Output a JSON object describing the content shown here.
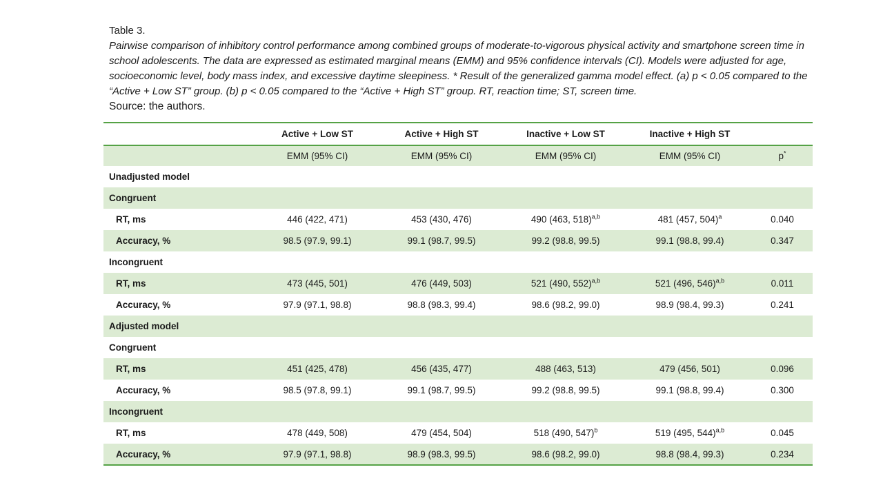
{
  "caption": {
    "table_number": "Table 3.",
    "text": "Pairwise comparison of inhibitory control performance among combined groups of moderate-to-vigorous physical activity and smartphone screen time in school adolescents. The data are expressed as estimated marginal means (EMM) and 95% confidence intervals (CI). Models were adjusted for age, socioeconomic level, body mass index, and excessive daytime sleepiness. * Result of the generalized gamma model effect. (a) p < 0.05 compared to the “Active + Low ST” group. (b) p < 0.05 compared to the “Active + High ST” group. RT, reaction time; ST, screen time.",
    "source": "Source: the authors."
  },
  "colors": {
    "row_shade": "#dcebd3",
    "rule_green": "#55a245",
    "text": "#1a1a1a"
  },
  "table": {
    "group_columns": [
      "Active + Low ST",
      "Active + High ST",
      "Inactive + Low ST",
      "Inactive + High ST"
    ],
    "subcolumns": [
      "EMM (95% CI)",
      "EMM (95% CI)",
      "EMM (95% CI)",
      "EMM (95% CI)"
    ],
    "p_header": {
      "label": "p",
      "sup": "*"
    },
    "rows": [
      {
        "type": "section",
        "label": "Unadjusted model",
        "shaded": false
      },
      {
        "type": "section",
        "label": "Congruent",
        "shaded": true
      },
      {
        "type": "data",
        "label": "RT, ms",
        "indent": true,
        "shaded": false,
        "values": [
          {
            "text": "446 (422, 471)",
            "sup": ""
          },
          {
            "text": "453 (430, 476)",
            "sup": ""
          },
          {
            "text": "490 (463, 518)",
            "sup": "a,b"
          },
          {
            "text": "481 (457, 504)",
            "sup": "a"
          }
        ],
        "p": "0.040"
      },
      {
        "type": "data",
        "label": "Accuracy, %",
        "indent": true,
        "shaded": true,
        "values": [
          {
            "text": "98.5 (97.9, 99.1)",
            "sup": ""
          },
          {
            "text": "99.1 (98.7, 99.5)",
            "sup": ""
          },
          {
            "text": "99.2 (98.8, 99.5)",
            "sup": ""
          },
          {
            "text": "99.1 (98.8, 99.4)",
            "sup": ""
          }
        ],
        "p": "0.347"
      },
      {
        "type": "section",
        "label": "Incongruent",
        "shaded": false
      },
      {
        "type": "data",
        "label": "RT, ms",
        "indent": true,
        "shaded": true,
        "values": [
          {
            "text": "473 (445, 501)",
            "sup": ""
          },
          {
            "text": "476 (449, 503)",
            "sup": ""
          },
          {
            "text": "521 (490, 552)",
            "sup": "a,b"
          },
          {
            "text": "521 (496, 546)",
            "sup": "a,b"
          }
        ],
        "p": "0.011"
      },
      {
        "type": "data",
        "label": "Accuracy, %",
        "indent": true,
        "shaded": false,
        "values": [
          {
            "text": "97.9 (97.1, 98.8)",
            "sup": ""
          },
          {
            "text": "98.8 (98.3, 99.4)",
            "sup": ""
          },
          {
            "text": "98.6 (98.2, 99.0)",
            "sup": ""
          },
          {
            "text": "98.9 (98.4, 99.3)",
            "sup": ""
          }
        ],
        "p": "0.241"
      },
      {
        "type": "section",
        "label": "Adjusted model",
        "shaded": true
      },
      {
        "type": "section",
        "label": "Congruent",
        "shaded": false
      },
      {
        "type": "data",
        "label": "RT, ms",
        "indent": true,
        "shaded": true,
        "values": [
          {
            "text": "451 (425, 478)",
            "sup": ""
          },
          {
            "text": "456 (435, 477)",
            "sup": ""
          },
          {
            "text": "488 (463, 513)",
            "sup": ""
          },
          {
            "text": "479 (456, 501)",
            "sup": ""
          }
        ],
        "p": "0.096"
      },
      {
        "type": "data",
        "label": "Accuracy, %",
        "indent": true,
        "shaded": false,
        "values": [
          {
            "text": "98.5 (97.8, 99.1)",
            "sup": ""
          },
          {
            "text": "99.1 (98.7, 99.5)",
            "sup": ""
          },
          {
            "text": "99.2 (98.8, 99.5)",
            "sup": ""
          },
          {
            "text": "99.1 (98.8, 99.4)",
            "sup": ""
          }
        ],
        "p": "0.300"
      },
      {
        "type": "section",
        "label": "Incongruent",
        "shaded": true
      },
      {
        "type": "data",
        "label": "RT, ms",
        "indent": true,
        "shaded": false,
        "values": [
          {
            "text": "478 (449, 508)",
            "sup": ""
          },
          {
            "text": "479 (454, 504)",
            "sup": ""
          },
          {
            "text": "518 (490, 547)",
            "sup": "b"
          },
          {
            "text": "519 (495, 544)",
            "sup": "a,b"
          }
        ],
        "p": "0.045"
      },
      {
        "type": "data",
        "label": "Accuracy, %",
        "indent": true,
        "shaded": true,
        "values": [
          {
            "text": "97.9 (97.1, 98.8)",
            "sup": ""
          },
          {
            "text": "98.9 (98.3, 99.5)",
            "sup": ""
          },
          {
            "text": "98.6 (98.2, 99.0)",
            "sup": ""
          },
          {
            "text": "98.8 (98.4, 99.3)",
            "sup": ""
          }
        ],
        "p": "0.234"
      }
    ]
  }
}
